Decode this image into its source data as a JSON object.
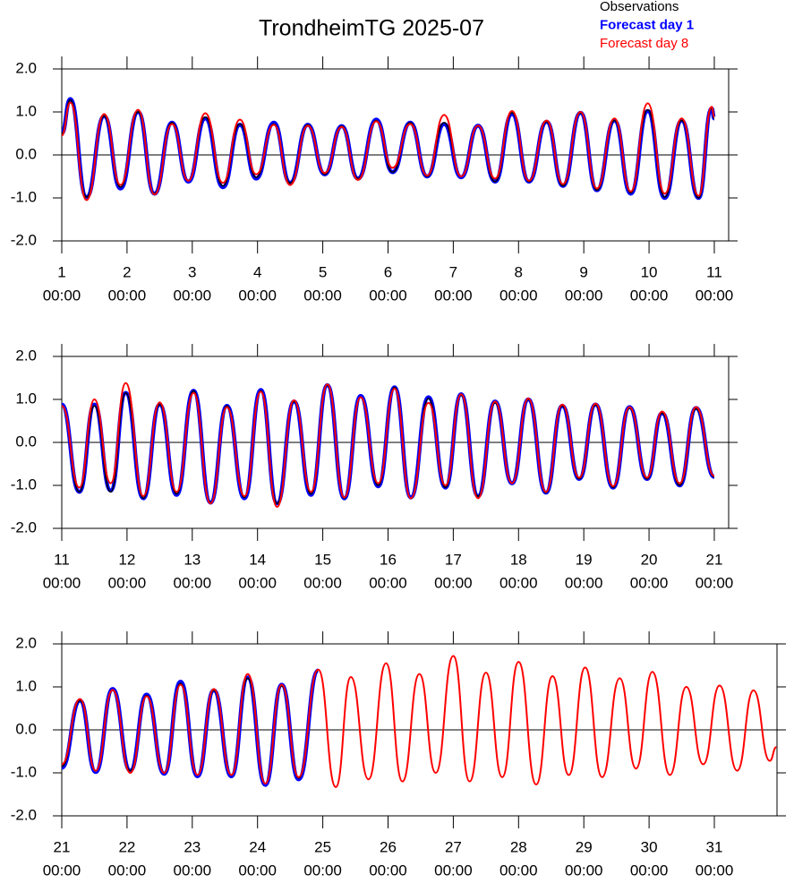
{
  "chart_data": [
    {
      "type": "line",
      "title": "TrondheimTG 2025-07",
      "legend": "top-right",
      "xlim": [
        1,
        11.22
      ],
      "xticks": [
        1,
        2,
        3,
        4,
        5,
        6,
        7,
        8,
        9,
        10,
        11
      ],
      "xtick_time": "00:00",
      "ylim": [
        -2,
        2
      ],
      "yticks": [
        {
          "value": -2,
          "label": "-2.0"
        },
        {
          "value": -1,
          "label": "-1.0"
        },
        {
          "value": 0,
          "label": "0.0"
        },
        {
          "value": 1,
          "label": "1.0"
        },
        {
          "value": 2,
          "label": "2.0"
        }
      ],
      "zero_line": true,
      "x": [
        1.0,
        1.13,
        1.38,
        1.65,
        1.9,
        2.17,
        2.42,
        2.69,
        2.94,
        3.2,
        3.47,
        3.73,
        3.98,
        4.25,
        4.5,
        4.77,
        5.03,
        5.29,
        5.54,
        5.82,
        6.07,
        6.34,
        6.6,
        6.86,
        7.12,
        7.38,
        7.64,
        7.9,
        8.16,
        8.43,
        8.68,
        8.95,
        9.2,
        9.47,
        9.72,
        9.98,
        10.24,
        10.5,
        10.76,
        10.96,
        11.0
      ],
      "series": [
        {
          "name": "Observations",
          "color": "#000000",
          "values": [
            0.5,
            1.28,
            -0.98,
            0.9,
            -0.75,
            1.0,
            -0.9,
            0.75,
            -0.6,
            0.88,
            -0.72,
            0.72,
            -0.52,
            0.72,
            -0.65,
            0.7,
            -0.45,
            0.67,
            -0.55,
            0.8,
            -0.4,
            0.75,
            -0.5,
            0.75,
            -0.5,
            0.68,
            -0.62,
            0.98,
            -0.62,
            0.77,
            -0.72,
            0.98,
            -0.82,
            0.8,
            -0.88,
            1.05,
            -0.98,
            0.8,
            -1.0,
            1.08,
            0.85
          ]
        },
        {
          "name": "Forecast day 1",
          "color": "#0000ff",
          "values": [
            0.5,
            1.3,
            -0.98,
            0.9,
            -0.78,
            1.0,
            -0.9,
            0.75,
            -0.62,
            0.85,
            -0.75,
            0.7,
            -0.55,
            0.75,
            -0.65,
            0.7,
            -0.45,
            0.67,
            -0.55,
            0.82,
            -0.4,
            0.75,
            -0.5,
            0.72,
            -0.52,
            0.68,
            -0.62,
            0.95,
            -0.62,
            0.77,
            -0.72,
            0.98,
            -0.82,
            0.8,
            -0.9,
            1.02,
            -1.0,
            0.8,
            -1.0,
            1.08,
            0.85
          ]
        },
        {
          "name": "Forecast day 8",
          "color": "#ff0000",
          "values": [
            0.45,
            1.22,
            -1.05,
            0.95,
            -0.7,
            1.05,
            -0.92,
            0.72,
            -0.6,
            0.97,
            -0.65,
            0.82,
            -0.45,
            0.7,
            -0.7,
            0.68,
            -0.42,
            0.65,
            -0.58,
            0.78,
            -0.3,
            0.72,
            -0.48,
            0.93,
            -0.5,
            0.68,
            -0.55,
            1.02,
            -0.6,
            0.8,
            -0.68,
            1.0,
            -0.78,
            0.85,
            -0.85,
            1.2,
            -0.9,
            0.85,
            -0.95,
            1.12,
            0.88
          ]
        }
      ]
    },
    {
      "type": "line",
      "xlim": [
        11,
        21.22
      ],
      "xticks": [
        11,
        12,
        13,
        14,
        15,
        16,
        17,
        18,
        19,
        20,
        21
      ],
      "xtick_time": "00:00",
      "ylim": [
        -2,
        2
      ],
      "yticks": [
        {
          "value": -2,
          "label": "-2.0"
        },
        {
          "value": -1,
          "label": "-1.0"
        },
        {
          "value": 0,
          "label": "0.0"
        },
        {
          "value": 1,
          "label": "1.0"
        },
        {
          "value": 2,
          "label": "2.0"
        }
      ],
      "zero_line": true,
      "x": [
        11.0,
        11.27,
        11.5,
        11.75,
        11.98,
        12.25,
        12.5,
        12.76,
        13.02,
        13.28,
        13.53,
        13.8,
        14.05,
        14.3,
        14.56,
        14.82,
        15.07,
        15.33,
        15.58,
        15.85,
        16.1,
        16.35,
        16.62,
        16.88,
        17.12,
        17.38,
        17.64,
        17.9,
        18.15,
        18.42,
        18.67,
        18.93,
        19.18,
        19.45,
        19.7,
        19.97,
        20.2,
        20.47,
        20.72,
        21.0
      ],
      "series": [
        {
          "color": "#000000",
          "values": [
            0.85,
            -1.15,
            0.85,
            -1.15,
            1.15,
            -1.3,
            0.88,
            -1.2,
            1.2,
            -1.4,
            0.85,
            -1.28,
            1.2,
            -1.42,
            0.95,
            -1.2,
            1.33,
            -1.3,
            1.05,
            -1.0,
            1.28,
            -1.3,
            1.02,
            -1.05,
            1.1,
            -1.25,
            0.92,
            -0.95,
            1.0,
            -1.17,
            0.85,
            -0.85,
            0.87,
            -1.05,
            0.8,
            -0.85,
            0.68,
            -1.0,
            0.78,
            -0.8
          ]
        },
        {
          "color": "#0000ff",
          "values": [
            0.88,
            -1.15,
            0.88,
            -1.12,
            1.15,
            -1.3,
            0.88,
            -1.22,
            1.2,
            -1.4,
            0.85,
            -1.3,
            1.22,
            -1.42,
            0.95,
            -1.22,
            1.33,
            -1.3,
            1.08,
            -1.02,
            1.28,
            -1.28,
            1.05,
            -1.05,
            1.12,
            -1.25,
            0.95,
            -0.95,
            1.0,
            -1.17,
            0.85,
            -0.85,
            0.88,
            -1.05,
            0.82,
            -0.85,
            0.68,
            -1.0,
            0.8,
            -0.8
          ]
        },
        {
          "color": "#ff0000",
          "values": [
            0.85,
            -1.05,
            1.0,
            -0.95,
            1.38,
            -1.25,
            0.93,
            -1.15,
            1.15,
            -1.42,
            0.82,
            -1.25,
            1.18,
            -1.5,
            0.98,
            -1.15,
            1.35,
            -1.28,
            1.05,
            -0.95,
            1.25,
            -1.3,
            0.92,
            -1.0,
            1.12,
            -1.3,
            0.95,
            -0.95,
            1.02,
            -1.15,
            0.88,
            -0.82,
            0.9,
            -1.02,
            0.82,
            -0.82,
            0.72,
            -0.95,
            0.82,
            -0.78
          ]
        }
      ]
    },
    {
      "type": "line",
      "xlim": [
        21,
        31.96
      ],
      "xticks": [
        21,
        22,
        23,
        24,
        25,
        26,
        27,
        28,
        29,
        30,
        31
      ],
      "xtick_time": "00:00",
      "ylim": [
        -2,
        2
      ],
      "yticks": [
        {
          "value": -2,
          "label": "-2.0"
        },
        {
          "value": -1,
          "label": "-1.0"
        },
        {
          "value": 0,
          "label": "0.0"
        },
        {
          "value": 1,
          "label": "1.0"
        },
        {
          "value": 2,
          "label": "2.0"
        }
      ],
      "zero_line": true,
      "x": [
        21.0,
        21.28,
        21.52,
        21.78,
        22.05,
        22.3,
        22.57,
        22.82,
        23.08,
        23.33,
        23.6,
        23.85,
        24.12,
        24.37,
        24.63,
        24.93,
        25.2,
        25.43,
        25.7,
        25.97,
        26.22,
        26.48,
        26.73,
        27.0,
        27.25,
        27.5,
        27.75,
        28.0,
        28.27,
        28.52,
        28.77,
        29.02,
        29.28,
        29.55,
        29.8,
        30.05,
        30.32,
        30.57,
        30.83,
        31.08,
        31.35,
        31.6,
        31.85,
        31.95
      ],
      "series": [
        {
          "color": "#000000",
          "values": [
            -0.85,
            0.68,
            -0.95,
            0.92,
            -0.95,
            0.8,
            -1.0,
            1.08,
            -1.05,
            0.92,
            -1.05,
            1.2,
            -1.25,
            1.02,
            -1.12,
            1.38,
            null,
            null,
            null,
            null,
            null,
            null,
            null,
            null,
            null,
            null,
            null,
            null,
            null,
            null,
            null,
            null,
            null,
            null,
            null,
            null,
            null,
            null,
            null,
            null,
            null,
            null,
            null,
            null
          ]
        },
        {
          "color": "#0000ff",
          "values": [
            -0.88,
            0.68,
            -0.98,
            0.95,
            -0.95,
            0.82,
            -1.02,
            1.12,
            -1.08,
            0.92,
            -1.08,
            1.22,
            -1.28,
            1.05,
            -1.15,
            1.38,
            null,
            null,
            null,
            null,
            null,
            null,
            null,
            null,
            null,
            null,
            null,
            null,
            null,
            null,
            null,
            null,
            null,
            null,
            null,
            null,
            null,
            null,
            null,
            null,
            null,
            null,
            null,
            null
          ]
        },
        {
          "color": "#ff0000",
          "values": [
            -0.8,
            0.72,
            -0.95,
            0.93,
            -1.0,
            0.78,
            -1.0,
            1.05,
            -1.05,
            0.95,
            -1.05,
            1.3,
            -1.25,
            1.05,
            -1.1,
            1.4,
            -1.33,
            1.23,
            -1.15,
            1.55,
            -1.2,
            1.3,
            -1.0,
            1.72,
            -1.2,
            1.33,
            -1.1,
            1.58,
            -1.27,
            1.25,
            -1.05,
            1.45,
            -1.1,
            1.2,
            -0.9,
            1.35,
            -1.05,
            1.0,
            -0.8,
            1.03,
            -0.95,
            0.92,
            -0.72,
            -0.4
          ]
        }
      ]
    }
  ]
}
